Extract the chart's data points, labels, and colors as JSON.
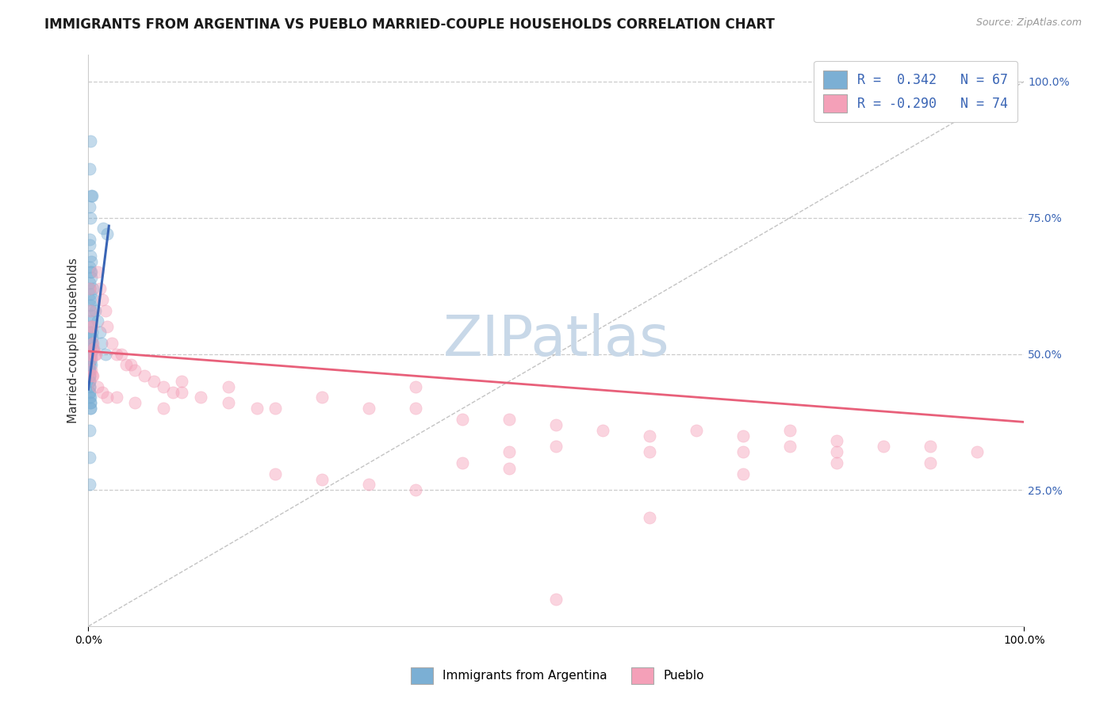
{
  "title": "IMMIGRANTS FROM ARGENTINA VS PUEBLO MARRIED-COUPLE HOUSEHOLDS CORRELATION CHART",
  "source": "Source: ZipAtlas.com",
  "ylabel": "Married-couple Households",
  "y_ticks": [
    0.25,
    0.5,
    0.75,
    1.0
  ],
  "y_tick_labels": [
    "25.0%",
    "50.0%",
    "75.0%",
    "100.0%"
  ],
  "x_tick_left": "0.0%",
  "x_tick_right": "100.0%",
  "legend_line1": "R =  0.342   N = 67",
  "legend_line2": "R = -0.290   N = 74",
  "watermark": "ZIPatlas",
  "blue_R": 0.342,
  "blue_N": 67,
  "pink_R": -0.29,
  "pink_N": 74,
  "xlim": [
    0.0,
    1.0
  ],
  "ylim": [
    0.0,
    1.05
  ],
  "background_color": "#ffffff",
  "grid_color": "#cccccc",
  "blue_color": "#7bafd4",
  "pink_color": "#f4a0b8",
  "blue_line_color": "#3a65b5",
  "pink_line_color": "#e8607a",
  "diag_line_color": "#aaaaaa",
  "title_fontsize": 12,
  "axis_label_fontsize": 11,
  "tick_fontsize": 10,
  "watermark_fontsize": 52,
  "watermark_color": "#c8d8e8",
  "scatter_size": 120,
  "scatter_alpha": 0.45,
  "blue_scatter_x": [
    0.002,
    0.001,
    0.003,
    0.004,
    0.001,
    0.002,
    0.016,
    0.02,
    0.001,
    0.001,
    0.002,
    0.003,
    0.001,
    0.002,
    0.003,
    0.001,
    0.001,
    0.002,
    0.001,
    0.002,
    0.002,
    0.003,
    0.001,
    0.002,
    0.001,
    0.002,
    0.001,
    0.002,
    0.001,
    0.001,
    0.001,
    0.001,
    0.001,
    0.001,
    0.001,
    0.001,
    0.001,
    0.001,
    0.001,
    0.001,
    0.001,
    0.001,
    0.001,
    0.001,
    0.002,
    0.002,
    0.002,
    0.002,
    0.002,
    0.003,
    0.003,
    0.003,
    0.003,
    0.004,
    0.004,
    0.004,
    0.005,
    0.005,
    0.006,
    0.007,
    0.01,
    0.012,
    0.014,
    0.018,
    0.001,
    0.001,
    0.001
  ],
  "blue_scatter_y": [
    0.89,
    0.84,
    0.79,
    0.79,
    0.77,
    0.75,
    0.73,
    0.72,
    0.71,
    0.7,
    0.68,
    0.67,
    0.66,
    0.65,
    0.64,
    0.63,
    0.62,
    0.61,
    0.6,
    0.59,
    0.58,
    0.57,
    0.56,
    0.55,
    0.54,
    0.53,
    0.52,
    0.51,
    0.5,
    0.5,
    0.49,
    0.48,
    0.48,
    0.47,
    0.47,
    0.46,
    0.46,
    0.45,
    0.45,
    0.44,
    0.44,
    0.43,
    0.43,
    0.42,
    0.42,
    0.41,
    0.41,
    0.4,
    0.4,
    0.5,
    0.49,
    0.48,
    0.65,
    0.54,
    0.53,
    0.52,
    0.51,
    0.62,
    0.6,
    0.58,
    0.56,
    0.54,
    0.52,
    0.5,
    0.36,
    0.31,
    0.26
  ],
  "pink_scatter_x": [
    0.001,
    0.002,
    0.003,
    0.004,
    0.005,
    0.006,
    0.007,
    0.008,
    0.01,
    0.012,
    0.015,
    0.018,
    0.02,
    0.025,
    0.03,
    0.035,
    0.04,
    0.045,
    0.05,
    0.06,
    0.07,
    0.08,
    0.09,
    0.1,
    0.12,
    0.15,
    0.18,
    0.2,
    0.25,
    0.3,
    0.35,
    0.4,
    0.45,
    0.5,
    0.55,
    0.6,
    0.65,
    0.7,
    0.75,
    0.8,
    0.85,
    0.9,
    0.95,
    0.001,
    0.002,
    0.003,
    0.004,
    0.005,
    0.01,
    0.015,
    0.02,
    0.03,
    0.05,
    0.08,
    0.1,
    0.15,
    0.2,
    0.25,
    0.3,
    0.35,
    0.4,
    0.45,
    0.5,
    0.6,
    0.7,
    0.8,
    0.9,
    0.35,
    0.45,
    0.5,
    0.6,
    0.7,
    0.75,
    0.8
  ],
  "pink_scatter_y": [
    0.62,
    0.58,
    0.55,
    0.55,
    0.52,
    0.51,
    0.5,
    0.5,
    0.65,
    0.62,
    0.6,
    0.58,
    0.55,
    0.52,
    0.5,
    0.5,
    0.48,
    0.48,
    0.47,
    0.46,
    0.45,
    0.44,
    0.43,
    0.43,
    0.42,
    0.41,
    0.4,
    0.4,
    0.42,
    0.4,
    0.4,
    0.38,
    0.38,
    0.37,
    0.36,
    0.35,
    0.36,
    0.35,
    0.36,
    0.34,
    0.33,
    0.33,
    0.32,
    0.5,
    0.49,
    0.47,
    0.46,
    0.46,
    0.44,
    0.43,
    0.42,
    0.42,
    0.41,
    0.4,
    0.45,
    0.44,
    0.28,
    0.27,
    0.26,
    0.25,
    0.3,
    0.29,
    0.05,
    0.2,
    0.28,
    0.3,
    0.3,
    0.44,
    0.32,
    0.33,
    0.32,
    0.32,
    0.33,
    0.32
  ],
  "blue_trend_x": [
    0.0,
    0.022
  ],
  "blue_trend_y": [
    0.435,
    0.735
  ],
  "pink_trend_x": [
    0.0,
    1.0
  ],
  "pink_trend_y": [
    0.505,
    0.375
  ]
}
